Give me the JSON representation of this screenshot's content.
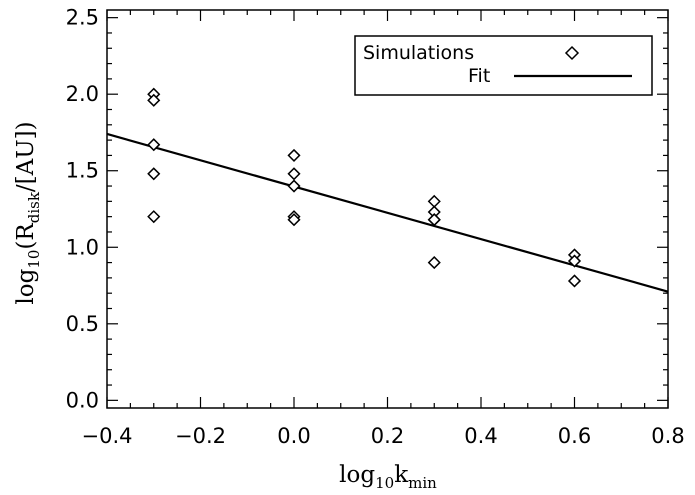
{
  "chart_data": {
    "type": "scatter",
    "title": "",
    "xlabel": {
      "base": "log",
      "sub": "10",
      "main": "k",
      "main_sub": "min"
    },
    "ylabel": {
      "base": "log",
      "sub": "10",
      "open": "(R",
      "r_sub": "disk",
      "close": "/[AU])"
    },
    "xlim": [
      -0.4,
      0.8
    ],
    "ylim": [
      -0.05,
      2.55
    ],
    "xticks": [
      -0.4,
      -0.2,
      0.0,
      0.2,
      0.4,
      0.6,
      0.8
    ],
    "xtick_labels": [
      "−0.4",
      "−0.2",
      "0.0",
      "0.2",
      "0.4",
      "0.6",
      "0.8"
    ],
    "yticks": [
      0.0,
      0.5,
      1.0,
      1.5,
      2.0,
      2.5
    ],
    "ytick_labels": [
      "0.0",
      "0.5",
      "1.0",
      "1.5",
      "2.0",
      "2.5"
    ],
    "series": [
      {
        "name": "Simulations",
        "marker": "diamond",
        "x": [
          -0.3,
          -0.3,
          -0.3,
          -0.3,
          -0.3,
          0.0,
          0.0,
          0.0,
          0.0,
          0.0,
          0.3,
          0.3,
          0.3,
          0.3,
          0.3,
          0.6,
          0.6,
          0.6
        ],
        "y": [
          2.0,
          1.96,
          1.67,
          1.48,
          1.2,
          1.6,
          1.48,
          1.4,
          1.2,
          1.18,
          1.3,
          1.23,
          1.18,
          0.9,
          1.18,
          0.95,
          0.91,
          0.78
        ]
      },
      {
        "name": "Fit",
        "marker": "line",
        "x": [
          -0.4,
          0.8
        ],
        "y": [
          1.74,
          0.71
        ]
      }
    ],
    "legend": {
      "position": "top-right",
      "entries": [
        "Simulations",
        "Fit"
      ]
    },
    "grid": false,
    "colors": {
      "ink": "#000000",
      "background": "#ffffff"
    }
  }
}
